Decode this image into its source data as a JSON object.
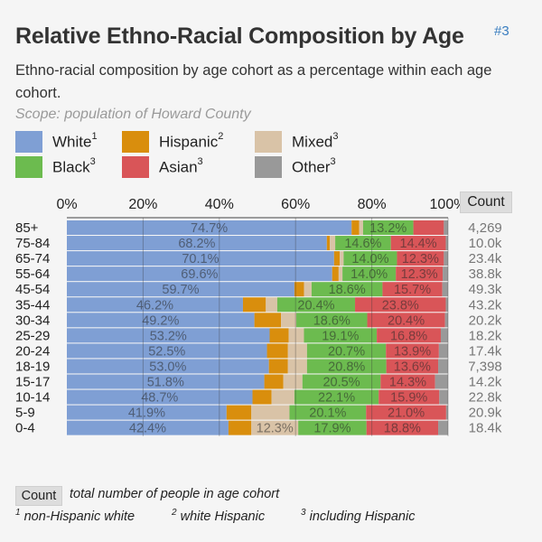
{
  "header": {
    "title": "Relative Ethno-Racial Composition by Age",
    "badge": "#3",
    "subtitle": "Ethno-racial composition by age cohort as a percentage within each age cohort.",
    "scope": "Scope: population of Howard County"
  },
  "legend": [
    {
      "label": "White",
      "sup": "1",
      "color": "#7f9fd4"
    },
    {
      "label": "Hispanic",
      "sup": "2",
      "color": "#d98e0d"
    },
    {
      "label": "Mixed",
      "sup": "3",
      "color": "#d9c3a7"
    },
    {
      "label": "Black",
      "sup": "3",
      "color": "#6cbb4f"
    },
    {
      "label": "Asian",
      "sup": "3",
      "color": "#d95558"
    },
    {
      "label": "Other",
      "sup": "3",
      "color": "#999999"
    }
  ],
  "count_header": "Count",
  "footer": {
    "count_key": "Count",
    "count_desc": "total number of people in age cohort",
    "note1_sup": "1",
    "note1": "non-Hispanic white",
    "note2_sup": "2",
    "note2": "white Hispanic",
    "note3_sup": "3",
    "note3": "including Hispanic"
  },
  "chart_data": {
    "type": "bar",
    "orientation": "horizontal",
    "stacked": true,
    "xlim": [
      0,
      100
    ],
    "x_ticks": [
      "0%",
      "20%",
      "40%",
      "60%",
      "80%",
      "100%"
    ],
    "grid": true,
    "categories": [
      "85+",
      "75-84",
      "65-74",
      "55-64",
      "45-54",
      "35-44",
      "30-34",
      "25-29",
      "20-24",
      "18-19",
      "15-17",
      "10-14",
      "5-9",
      "0-4"
    ],
    "counts": [
      "4,269",
      "10.0k",
      "23.4k",
      "38.8k",
      "49.3k",
      "43.2k",
      "20.2k",
      "18.2k",
      "17.4k",
      "7,398",
      "14.2k",
      "22.8k",
      "20.9k",
      "18.4k"
    ],
    "series": [
      {
        "name": "White",
        "values": [
          74.7,
          68.2,
          70.1,
          69.6,
          59.7,
          46.2,
          49.2,
          53.2,
          52.5,
          53.0,
          51.8,
          48.7,
          41.9,
          42.4
        ],
        "labels": [
          "74.7%",
          "68.2%",
          "70.1%",
          "69.6%",
          "59.7%",
          "46.2%",
          "49.2%",
          "53.2%",
          "52.5%",
          "53.0%",
          "51.8%",
          "48.7%",
          "41.9%",
          "42.4%"
        ]
      },
      {
        "name": "Hispanic",
        "values": [
          2.0,
          0.8,
          1.5,
          1.7,
          2.5,
          6.0,
          7.0,
          5.0,
          5.5,
          5.0,
          5.0,
          5.0,
          6.5,
          6.0
        ],
        "labels": [
          "",
          "",
          "",
          "",
          "",
          "",
          "",
          "",
          "",
          "",
          "",
          "",
          "",
          ""
        ]
      },
      {
        "name": "Mixed",
        "values": [
          1.0,
          1.4,
          1.0,
          1.0,
          2.0,
          3.0,
          4.0,
          4.0,
          5.0,
          5.0,
          5.0,
          6.0,
          10.0,
          12.3
        ],
        "labels": [
          "",
          "",
          "",
          "",
          "",
          "",
          "",
          "",
          "",
          "",
          "",
          "",
          "",
          "12.3%"
        ]
      },
      {
        "name": "Black",
        "values": [
          13.2,
          14.6,
          14.0,
          14.0,
          18.6,
          20.4,
          18.6,
          19.1,
          20.7,
          20.8,
          20.5,
          22.1,
          20.1,
          17.9
        ],
        "labels": [
          "13.2%",
          "14.6%",
          "14.0%",
          "14.0%",
          "18.6%",
          "20.4%",
          "18.6%",
          "19.1%",
          "20.7%",
          "20.8%",
          "20.5%",
          "22.1%",
          "20.1%",
          "17.9%"
        ]
      },
      {
        "name": "Asian",
        "values": [
          8.0,
          14.4,
          12.3,
          12.3,
          15.7,
          23.8,
          20.4,
          16.8,
          13.9,
          13.6,
          14.3,
          15.9,
          21.0,
          18.8
        ],
        "labels": [
          "",
          "14.4%",
          "12.3%",
          "12.3%",
          "15.7%",
          "23.8%",
          "20.4%",
          "16.8%",
          "13.9%",
          "13.6%",
          "14.3%",
          "15.9%",
          "21.0%",
          "18.8%"
        ]
      },
      {
        "name": "Other",
        "values": [
          1.1,
          0.6,
          1.1,
          1.4,
          1.5,
          0.6,
          0.8,
          1.9,
          2.4,
          2.6,
          3.4,
          2.3,
          0.5,
          2.6
        ],
        "labels": [
          "",
          "",
          "",
          "",
          "",
          "",
          "",
          "",
          "",
          "",
          "",
          "",
          "",
          ""
        ]
      }
    ]
  }
}
